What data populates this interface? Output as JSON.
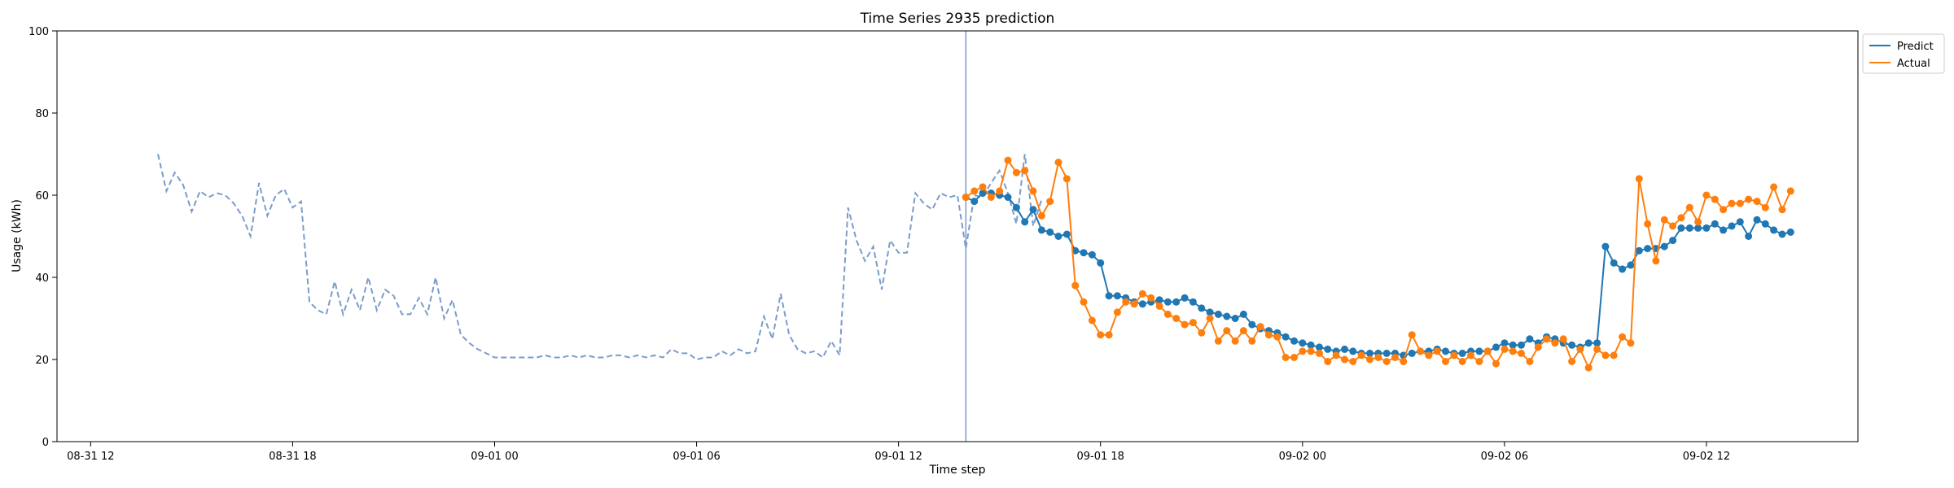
{
  "chart_data": {
    "type": "line",
    "title": "Time Series 2935 prediction",
    "xlabel": "Time step",
    "ylabel": "Usage (kWh)",
    "ylim": [
      0,
      100
    ],
    "xlim": [
      "2024-08-31T11:00",
      "2024-09-02T16:30"
    ],
    "x_ticks": [
      {
        "t": "2024-08-31T12:00",
        "label": "08-31 12"
      },
      {
        "t": "2024-08-31T18:00",
        "label": "08-31 18"
      },
      {
        "t": "2024-09-01T00:00",
        "label": "09-01 00"
      },
      {
        "t": "2024-09-01T06:00",
        "label": "09-01 06"
      },
      {
        "t": "2024-09-01T12:00",
        "label": "09-01 12"
      },
      {
        "t": "2024-09-01T18:00",
        "label": "09-01 18"
      },
      {
        "t": "2024-09-02T00:00",
        "label": "09-02 00"
      },
      {
        "t": "2024-09-02T06:00",
        "label": "09-02 06"
      },
      {
        "t": "2024-09-02T12:00",
        "label": "09-02 12"
      }
    ],
    "y_ticks": [
      0,
      20,
      40,
      60,
      80,
      100
    ],
    "grid": false,
    "legend_position": "top-right, outside plot",
    "forecast_start": "2024-09-01T14:00",
    "step_minutes": 15,
    "history": {
      "start": "2024-08-31T14:00",
      "color": "#7b9cc9",
      "style": "dashed",
      "values": [
        70,
        61,
        65.5,
        62.5,
        56,
        61,
        59.5,
        60.5,
        60,
        58,
        55,
        50,
        63,
        55,
        60,
        61.5,
        57,
        58.5,
        34,
        32,
        31,
        39,
        31,
        37,
        32,
        40,
        32,
        37,
        35.5,
        31,
        31,
        35,
        31,
        40,
        30,
        34.5,
        26,
        24,
        22.5,
        21.5,
        20.5,
        20.5,
        20.5,
        20.5,
        20.5,
        20.5,
        21,
        20.5,
        20.5,
        21,
        20.5,
        21,
        20.5,
        20.5,
        21,
        21,
        20.5,
        21,
        20.5,
        21,
        20.5,
        22.5,
        21.5,
        21.5,
        20,
        20.5,
        20.5,
        22,
        21,
        22.5,
        21.5,
        22,
        30.5,
        25,
        36,
        26,
        22.5,
        21.5,
        22,
        20.5,
        24.5,
        21,
        57,
        49,
        44,
        47.5,
        37,
        49,
        46,
        46,
        60.5,
        58,
        56.5,
        60.5,
        59.5,
        60,
        47,
        60,
        59.5,
        63,
        66,
        60.5,
        53,
        70,
        52.5,
        59
      ]
    },
    "series": [
      {
        "name": "Predict",
        "color": "#1f77b4",
        "start": "2024-09-01T14:00",
        "values": [
          59.5,
          58.5,
          60.5,
          60.5,
          60,
          59.5,
          57,
          53.5,
          56.5,
          51.5,
          51,
          50,
          50.5,
          46.5,
          46,
          45.5,
          43.5,
          35.5,
          35.5,
          35,
          34,
          33.5,
          34,
          34.5,
          34,
          34,
          35,
          34,
          32.5,
          31.5,
          31,
          30.5,
          30,
          31,
          28.5,
          27.5,
          27,
          26.5,
          25.5,
          24.5,
          24,
          23.5,
          23,
          22.5,
          22,
          22.5,
          22,
          21.5,
          21.5,
          21.5,
          21.5,
          21.5,
          21,
          21.5,
          22,
          22,
          22.5,
          22,
          21.5,
          21.5,
          22,
          22,
          22,
          23,
          24,
          23.5,
          23.5,
          25,
          24,
          25.5,
          25,
          24,
          23.5,
          23,
          24,
          24,
          47.5,
          43.5,
          42,
          43,
          46.5,
          47,
          47,
          47.5,
          49,
          52,
          52,
          52,
          52,
          53,
          51.5,
          52.5,
          53.5,
          50,
          54,
          53,
          51.5,
          50.5,
          51
        ]
      },
      {
        "name": "Actual",
        "color": "#ff7f0e",
        "start": "2024-09-01T14:00",
        "values": [
          59.5,
          61,
          62,
          59.5,
          61,
          68.5,
          65.5,
          66,
          61,
          55,
          58.5,
          68,
          64,
          38,
          34,
          29.5,
          26,
          26,
          31.5,
          34,
          33.5,
          36,
          35,
          33,
          31,
          30,
          28.5,
          29,
          26.5,
          30,
          24.5,
          27,
          24.5,
          27,
          24.5,
          28,
          26,
          25.5,
          20.5,
          20.5,
          22,
          22,
          21.5,
          19.5,
          21,
          20,
          19.5,
          21,
          20,
          20.5,
          19.5,
          20.5,
          19.5,
          26,
          22,
          21,
          22,
          19.5,
          21,
          19.5,
          21,
          19.5,
          22,
          19,
          22.5,
          22,
          21.5,
          19.5,
          23,
          25,
          24,
          25,
          19.5,
          22.5,
          18,
          22.5,
          21,
          21,
          25.5,
          24,
          64,
          53,
          44,
          54,
          52.5,
          54.5,
          57,
          53.5,
          60,
          59,
          56.5,
          58,
          58,
          59,
          58.5,
          57,
          62,
          56.5,
          61
        ]
      }
    ]
  }
}
